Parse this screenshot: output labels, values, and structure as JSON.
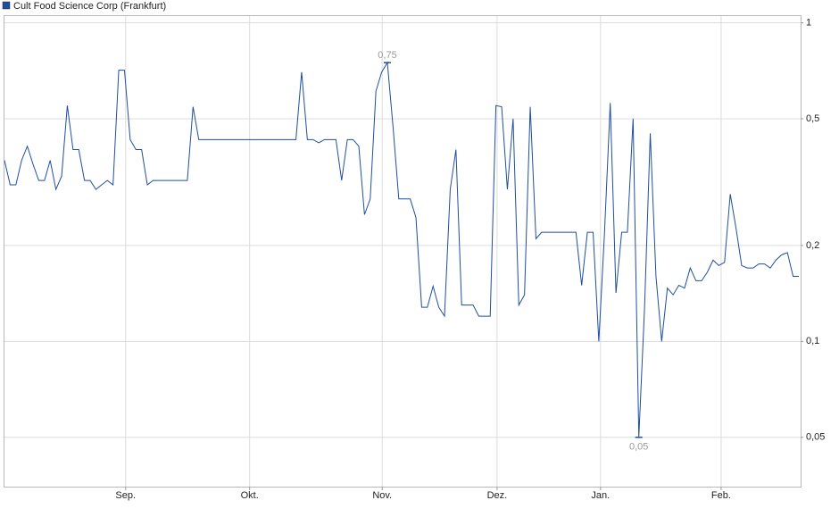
{
  "chart_data": {
    "type": "line",
    "log_scale": true,
    "grid": true,
    "series": [
      {
        "name": "Cult Food Science Corp (Frankfurt)",
        "color": "#1f4e9f",
        "values": [
          0.37,
          0.31,
          0.31,
          0.37,
          0.41,
          0.36,
          0.32,
          0.32,
          0.37,
          0.3,
          0.33,
          0.55,
          0.4,
          0.4,
          0.32,
          0.32,
          0.3,
          0.31,
          0.32,
          0.31,
          0.71,
          0.71,
          0.43,
          0.4,
          0.4,
          0.31,
          0.32,
          0.32,
          0.32,
          0.32,
          0.32,
          0.32,
          0.32,
          0.545,
          0.43,
          0.43,
          0.43,
          0.43,
          0.43,
          0.43,
          0.43,
          0.43,
          0.43,
          0.43,
          0.43,
          0.43,
          0.43,
          0.43,
          0.43,
          0.43,
          0.43,
          0.43,
          0.7,
          0.43,
          0.43,
          0.42,
          0.43,
          0.43,
          0.43,
          0.32,
          0.43,
          0.43,
          0.41,
          0.25,
          0.28,
          0.61,
          0.7,
          0.75,
          0.47,
          0.28,
          0.28,
          0.28,
          0.245,
          0.128,
          0.128,
          0.149,
          0.128,
          0.12,
          0.3,
          0.4,
          0.13,
          0.13,
          0.13,
          0.12,
          0.12,
          0.12,
          0.55,
          0.545,
          0.3,
          0.5,
          0.13,
          0.14,
          0.545,
          0.21,
          0.22,
          0.22,
          0.22,
          0.22,
          0.22,
          0.22,
          0.22,
          0.15,
          0.22,
          0.22,
          0.1,
          0.22,
          0.56,
          0.142,
          0.22,
          0.22,
          0.5,
          0.05,
          0.127,
          0.45,
          0.16,
          0.1,
          0.147,
          0.14,
          0.15,
          0.147,
          0.17,
          0.155,
          0.155,
          0.165,
          0.18,
          0.173,
          0.177,
          0.29,
          0.227,
          0.173,
          0.17,
          0.17,
          0.175,
          0.175,
          0.17,
          0.18,
          0.187,
          0.19,
          0.16,
          0.16
        ],
        "value_labels": [
          null,
          null,
          null,
          null,
          null,
          null,
          null,
          null,
          null,
          null,
          null,
          null,
          null,
          null,
          null,
          null,
          null,
          null,
          null,
          null,
          null,
          null,
          null,
          null,
          null,
          null,
          null,
          null,
          null,
          null,
          null,
          null,
          null,
          null,
          null,
          null,
          null,
          null,
          null,
          null,
          null,
          null,
          null,
          null,
          null,
          null,
          null,
          null,
          null,
          null,
          null,
          null,
          null,
          null,
          null,
          null,
          null,
          null,
          null,
          null,
          null,
          null,
          null,
          null,
          null,
          null,
          null,
          "0,75",
          null,
          null,
          null,
          null,
          null,
          null,
          null,
          null,
          null,
          null,
          null,
          null,
          null,
          null,
          null,
          null,
          null,
          null,
          null,
          null,
          null,
          null,
          null,
          null,
          null,
          null,
          null,
          null,
          null,
          null,
          null,
          null,
          null,
          null,
          null,
          null,
          null,
          null,
          null,
          null,
          null,
          null,
          null,
          "0,05",
          null,
          null,
          null,
          null,
          null,
          null,
          null,
          null,
          null,
          null,
          null,
          null,
          null,
          null,
          null,
          null,
          null,
          null,
          null,
          null,
          null,
          null,
          null,
          null,
          null,
          null,
          null,
          null
        ]
      }
    ],
    "x": [
      0,
      1,
      2,
      3,
      4,
      5,
      6,
      7,
      8,
      9,
      10,
      11,
      12,
      13,
      14,
      15,
      16,
      17,
      18,
      19,
      20,
      21,
      22,
      23,
      24,
      25,
      26,
      27,
      28,
      29,
      30,
      31,
      32,
      33,
      34,
      35,
      36,
      37,
      38,
      39,
      40,
      41,
      42,
      43,
      44,
      45,
      46,
      47,
      48,
      49,
      50,
      51,
      52,
      53,
      54,
      55,
      56,
      57,
      58,
      59,
      60,
      61,
      62,
      63,
      64,
      65,
      66,
      67,
      68,
      69,
      70,
      71,
      72,
      73,
      74,
      75,
      76,
      77,
      78,
      79,
      80,
      81,
      82,
      83,
      84,
      85,
      86,
      87,
      88,
      89,
      90,
      91,
      92,
      93,
      94,
      95,
      96,
      97,
      98,
      99,
      100,
      101,
      102,
      103,
      104,
      105,
      106,
      107,
      108,
      109,
      110,
      111,
      112,
      113,
      114,
      115,
      116,
      117,
      118,
      119,
      120,
      121,
      122,
      123,
      124,
      125,
      126,
      127,
      128,
      129,
      130,
      131,
      132,
      133,
      134,
      135,
      136,
      137,
      138,
      139
    ],
    "xlim": [
      0,
      139
    ],
    "xticks": [
      {
        "value": 21.2,
        "label": "Sep."
      },
      {
        "value": 42.9,
        "label": "Okt."
      },
      {
        "value": 66.1,
        "label": "Nov."
      },
      {
        "value": 86.2,
        "label": "Dez."
      },
      {
        "value": 104.3,
        "label": "Jan."
      },
      {
        "value": 125.4,
        "label": "Feb."
      }
    ],
    "ylim": [
      0.035,
      1.05
    ],
    "yticks": [
      1,
      {
        "value": 0.5,
        "label": "0,5"
      },
      {
        "value": 0.2,
        "label": "0,2"
      },
      {
        "value": 0.1,
        "label": "0,1"
      },
      {
        "value": 0.05,
        "label": "0,05"
      }
    ]
  }
}
